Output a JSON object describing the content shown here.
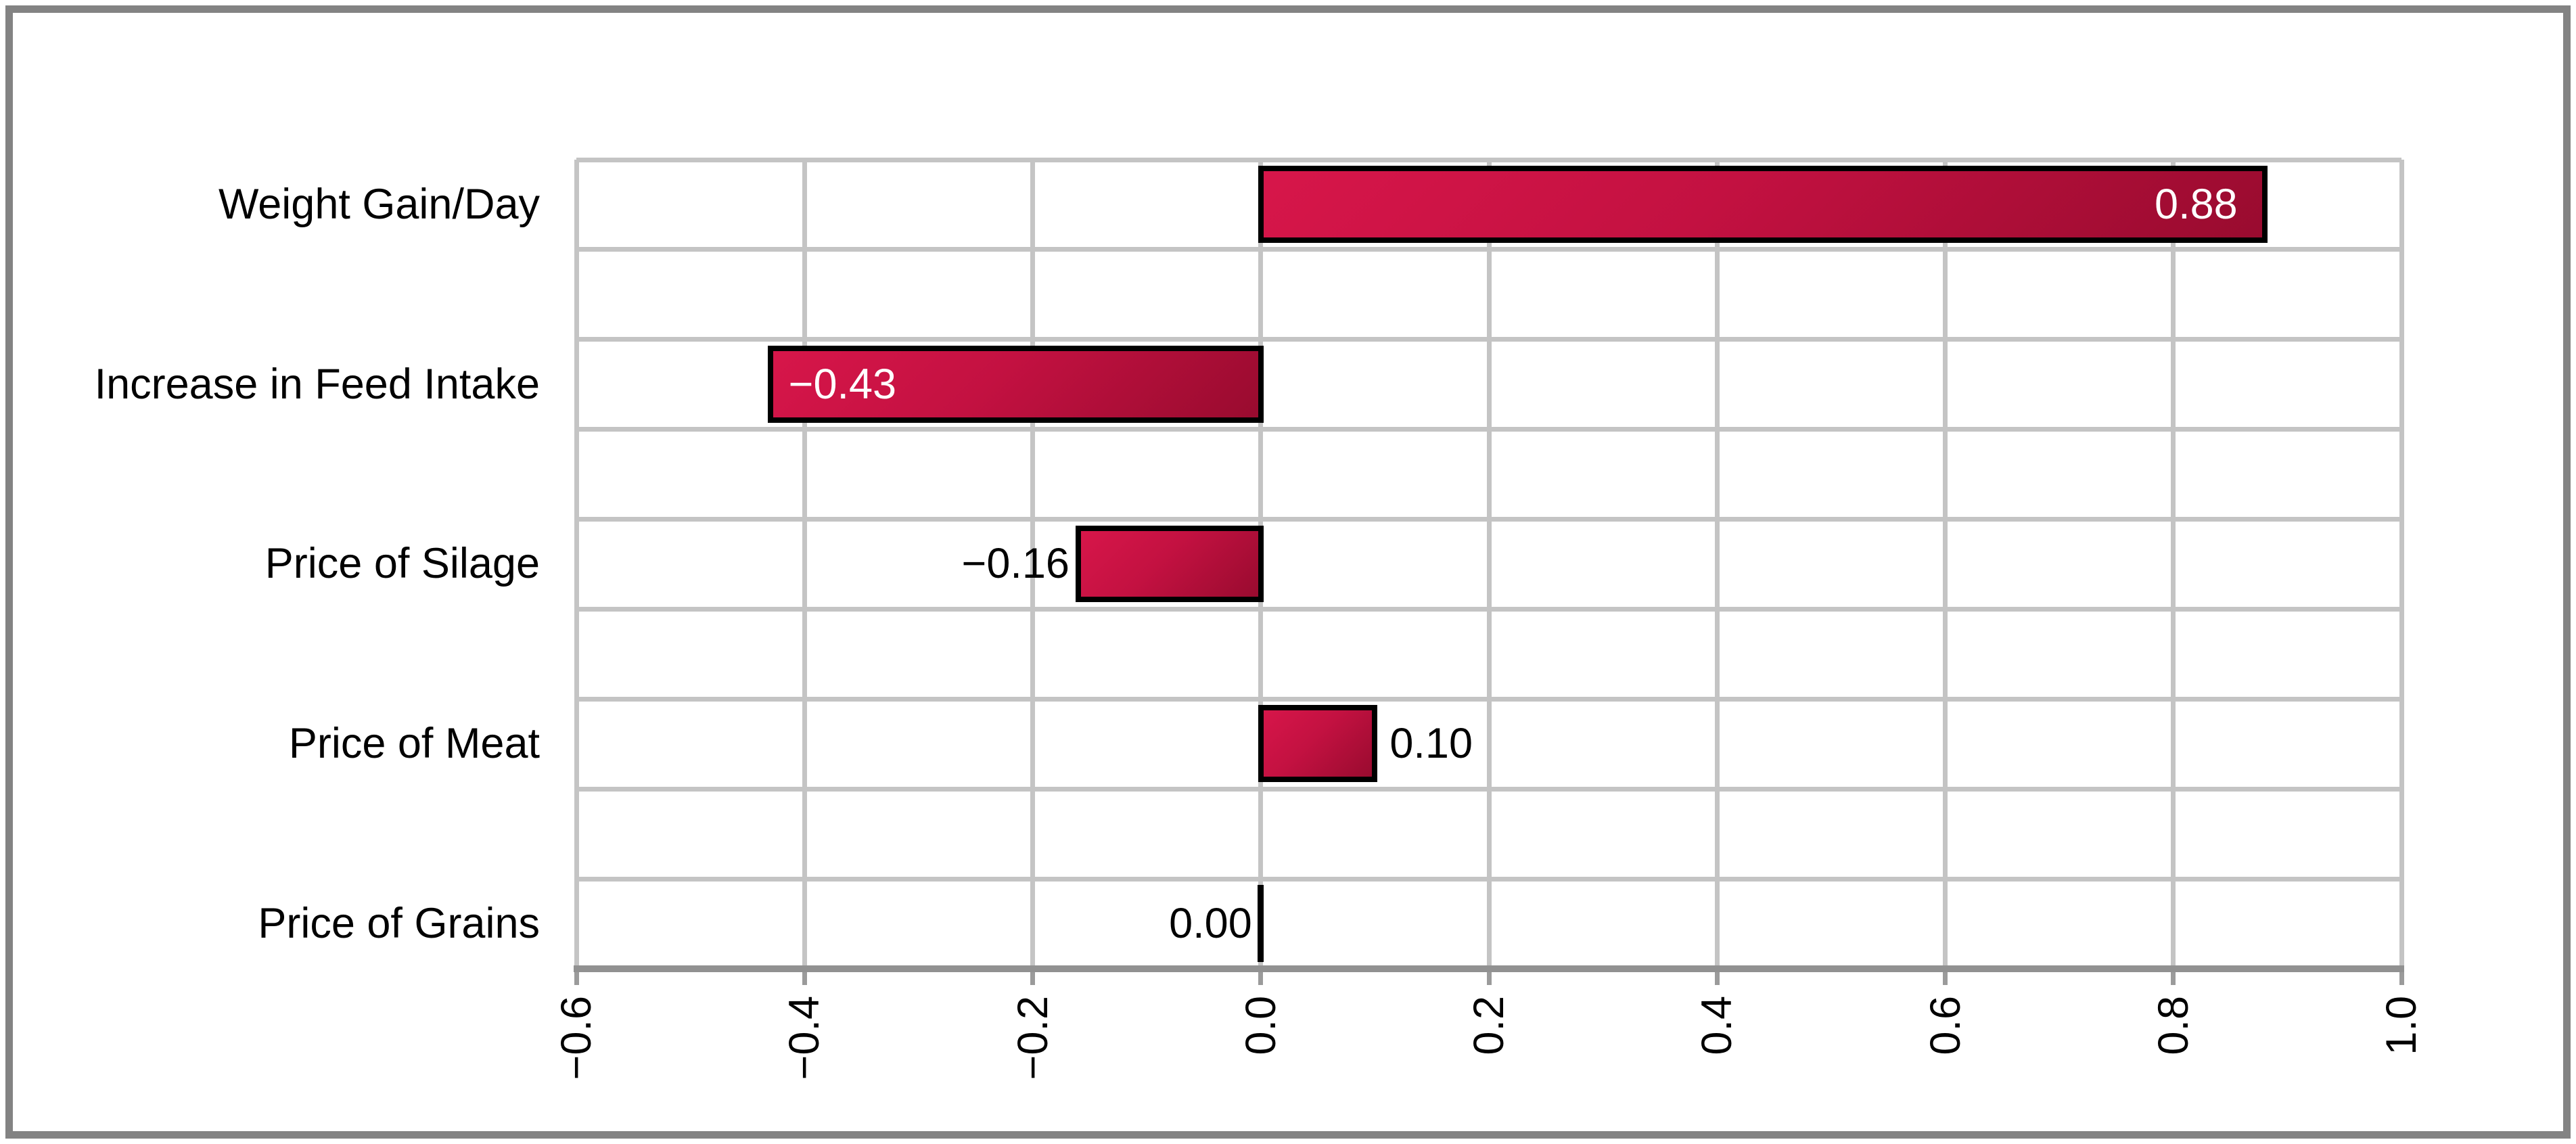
{
  "chart_data": {
    "type": "bar",
    "orientation": "horizontal",
    "title": "",
    "xlabel": "",
    "ylabel": "",
    "categories": [
      "Weight Gain/Day",
      "Increase in Feed Intake",
      "Price of Silage",
      "Price of Meat",
      "Price of Grains"
    ],
    "values": [
      0.88,
      -0.43,
      -0.16,
      0.1,
      0.0
    ],
    "value_labels": [
      "0.88",
      "−0.43",
      "−0.16",
      "0.10",
      "0.00"
    ],
    "value_label_styles": [
      {
        "placement": "inside-right",
        "color": "#ffffff"
      },
      {
        "placement": "inside-left",
        "color": "#ffffff"
      },
      {
        "placement": "outside-left",
        "color": "#000000"
      },
      {
        "placement": "outside-right",
        "color": "#000000"
      },
      {
        "placement": "outside-left",
        "color": "#000000"
      }
    ],
    "xlim": [
      -0.6,
      1.0
    ],
    "xticks": [
      -0.6,
      -0.4,
      -0.2,
      0.0,
      0.2,
      0.4,
      0.6,
      0.8,
      1.0
    ],
    "xtick_labels": [
      "−0.6",
      "−0.4",
      "−0.2",
      "0.0",
      "0.2",
      "0.4",
      "0.6",
      "0.8",
      "1.0"
    ],
    "grid": "both",
    "legend": false,
    "band_count": 9,
    "colors": {
      "bar_gradient_start": "#d7164a",
      "bar_gradient_mid": "#c31141",
      "bar_gradient_end": "#990b2f",
      "bar_border": "#000000",
      "gridline": "#c4c4c4",
      "axis_line": "#919191",
      "tick_mark": "#9b9b9b",
      "frame_border": "#838383",
      "background": "#ffffff",
      "text": "#000000"
    }
  }
}
